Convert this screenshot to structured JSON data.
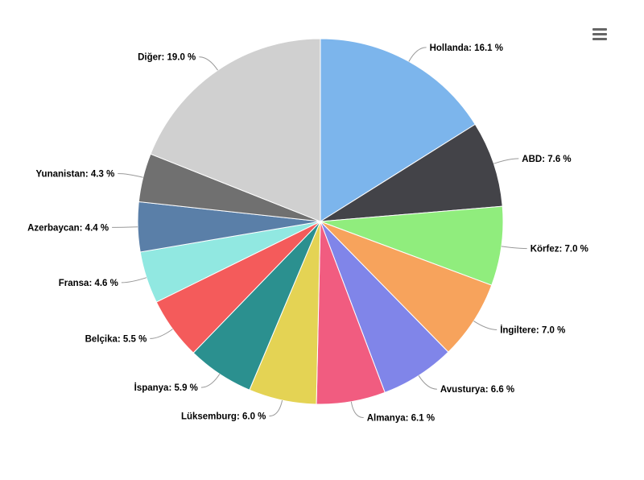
{
  "chart_data": {
    "type": "pie",
    "title": "",
    "unit": "%",
    "label_separator": ": ",
    "slices": [
      {
        "name": "Hollanda",
        "value": 16.1,
        "color": "#7cb5ec"
      },
      {
        "name": "ABD",
        "value": 7.6,
        "color": "#434348"
      },
      {
        "name": "Körfez",
        "value": 7.0,
        "color": "#90ed7d"
      },
      {
        "name": "İngiltere",
        "value": 7.0,
        "color": "#f7a35c"
      },
      {
        "name": "Avusturya",
        "value": 6.6,
        "color": "#8085e9"
      },
      {
        "name": "Almanya",
        "value": 6.1,
        "color": "#f15c80"
      },
      {
        "name": "Lüksemburg",
        "value": 6.0,
        "color": "#e4d354"
      },
      {
        "name": "İspanya",
        "value": 5.9,
        "color": "#2b908f"
      },
      {
        "name": "Belçika",
        "value": 5.5,
        "color": "#f45b5b"
      },
      {
        "name": "Fransa",
        "value": 4.6,
        "color": "#91e8e1"
      },
      {
        "name": "Azerbaycan",
        "value": 4.4,
        "color": "#5a7fa8"
      },
      {
        "name": "Yunanistan",
        "value": 4.3,
        "color": "#707070"
      },
      {
        "name": "Diğer",
        "value": 19.0,
        "color": "#d0d0d0"
      }
    ]
  },
  "toolbar": {
    "menu_icon": "hamburger-menu-icon"
  }
}
